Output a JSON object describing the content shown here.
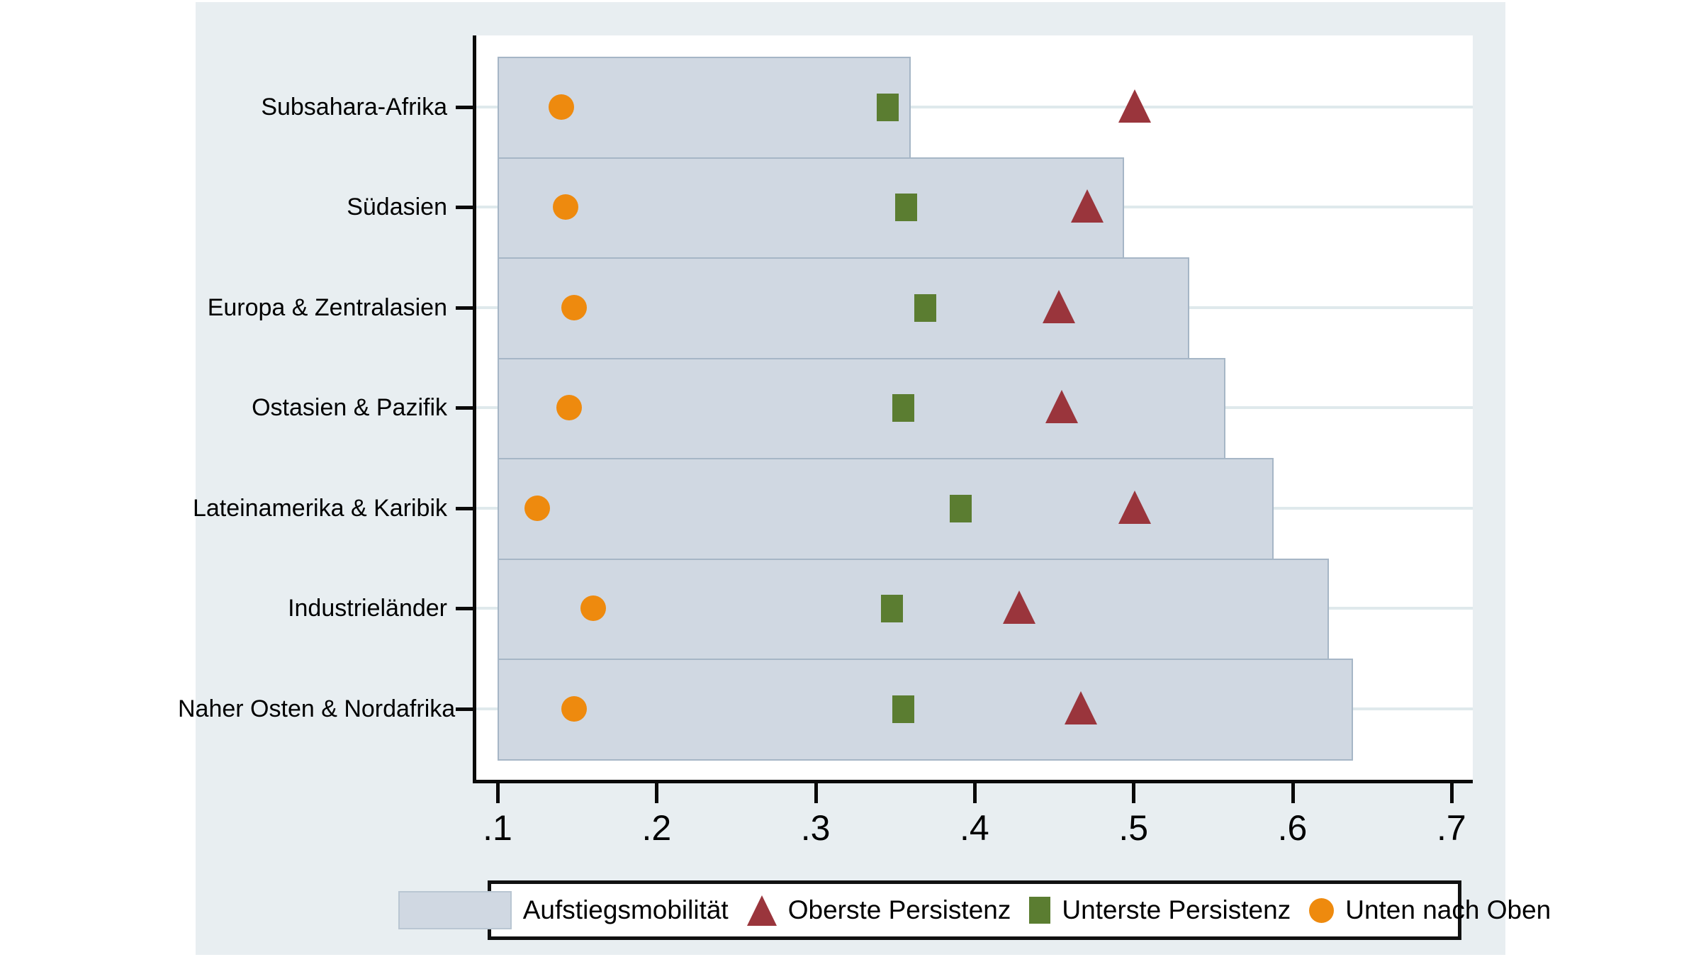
{
  "chart_data": {
    "type": "bar",
    "orientation": "horizontal",
    "title": "",
    "xlabel": "",
    "ylabel": "",
    "categories": [
      "Subsahara-Afrika",
      "Südasien",
      "Europa & Zentralasien",
      "Ostasien & Pazifik",
      "Lateinamerika & Karibik",
      "Industrieländer",
      "Naher Osten & Nordafrika"
    ],
    "series": [
      {
        "name": "Aufstiegsmobilität",
        "marker": "bar",
        "color": "#d0d8e2",
        "border_color": "#a6b6c6",
        "values": [
          0.36,
          0.494,
          0.535,
          0.558,
          0.588,
          0.623,
          0.638
        ]
      },
      {
        "name": "Oberste Persistenz",
        "marker": "triangle",
        "color": "#9a353c",
        "values": [
          0.501,
          0.471,
          0.453,
          0.455,
          0.501,
          0.428,
          0.467
        ]
      },
      {
        "name": "Unterste Persistenz",
        "marker": "square",
        "color": "#5b7d31",
        "values": [
          0.345,
          0.357,
          0.369,
          0.355,
          0.391,
          0.348,
          0.355
        ]
      },
      {
        "name": "Unten nach Oben",
        "marker": "circle",
        "color": "#ee8a0e",
        "values": [
          0.14,
          0.143,
          0.148,
          0.145,
          0.125,
          0.16,
          0.148
        ]
      }
    ],
    "bar_base_value": 0.1,
    "xticks": [
      ".1",
      ".2",
      ".3",
      ".4",
      ".5",
      ".6",
      ".7"
    ],
    "xtick_values": [
      0.1,
      0.2,
      0.3,
      0.4,
      0.5,
      0.6,
      0.7
    ],
    "xlim": [
      0.086,
      0.713
    ],
    "grid": true,
    "gridline_color": "#dfe9ec",
    "legend_position": "bottom",
    "background_color": "#e8eef1",
    "plot_background_color": "#ffffff",
    "axis_color": "#0a0a0a"
  }
}
